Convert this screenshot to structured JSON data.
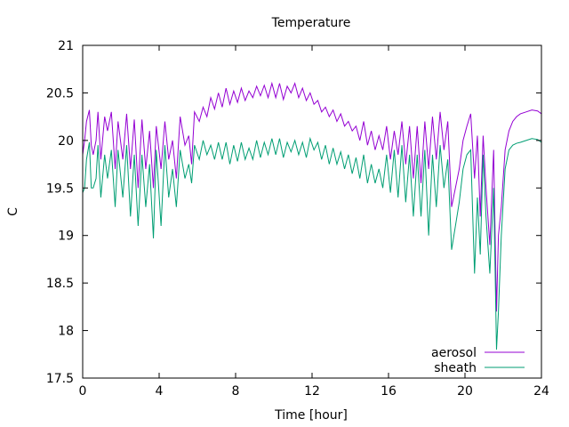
{
  "chart_data": {
    "type": "line",
    "title": "Temperature",
    "xlabel": "Time [hour]",
    "ylabel": "C",
    "xlim": [
      0,
      24
    ],
    "ylim": [
      17.5,
      21
    ],
    "x_ticks": [
      0,
      4,
      8,
      12,
      16,
      20,
      24
    ],
    "x_tick_labels": [
      "0",
      "4",
      "8",
      "12",
      "16",
      "20",
      "24"
    ],
    "y_ticks": [
      17.5,
      18,
      18.5,
      19,
      19.5,
      20,
      20.5,
      21
    ],
    "y_tick_labels": [
      "17.5",
      "18",
      "18.5",
      "19",
      "19.5",
      "20",
      "20.5",
      "21"
    ],
    "grid": false,
    "legend_position": "bottom-right",
    "series": [
      {
        "name": "aerosol",
        "color": "#9400d3",
        "x": [
          0.0,
          0.1,
          0.2,
          0.35,
          0.45,
          0.55,
          0.7,
          0.8,
          0.95,
          1.15,
          1.3,
          1.5,
          1.7,
          1.85,
          2.1,
          2.3,
          2.5,
          2.7,
          2.9,
          3.1,
          3.3,
          3.5,
          3.7,
          3.85,
          4.1,
          4.3,
          4.5,
          4.7,
          4.9,
          5.1,
          5.35,
          5.55,
          5.7,
          5.85,
          6.1,
          6.3,
          6.5,
          6.7,
          6.9,
          7.1,
          7.3,
          7.5,
          7.7,
          7.9,
          8.1,
          8.3,
          8.5,
          8.7,
          8.9,
          9.1,
          9.3,
          9.5,
          9.7,
          9.9,
          10.1,
          10.3,
          10.5,
          10.7,
          10.9,
          11.1,
          11.3,
          11.5,
          11.7,
          11.9,
          12.1,
          12.3,
          12.5,
          12.7,
          12.9,
          13.1,
          13.3,
          13.5,
          13.7,
          13.9,
          14.1,
          14.3,
          14.5,
          14.7,
          14.9,
          15.1,
          15.3,
          15.5,
          15.7,
          15.9,
          16.1,
          16.3,
          16.5,
          16.7,
          16.9,
          17.1,
          17.3,
          17.5,
          17.7,
          17.9,
          18.1,
          18.3,
          18.5,
          18.7,
          18.9,
          19.1,
          19.3,
          19.5,
          19.7,
          19.9,
          20.1,
          20.3,
          20.5,
          20.65,
          20.8,
          20.95,
          21.1,
          21.3,
          21.5,
          21.65,
          21.75,
          21.9,
          22.1,
          22.3,
          22.5,
          22.7,
          22.9,
          23.2,
          23.5,
          23.8,
          24.0
        ],
        "values": [
          19.85,
          20.0,
          20.2,
          20.32,
          19.95,
          19.85,
          20.0,
          20.3,
          19.8,
          20.25,
          20.1,
          20.3,
          19.7,
          20.2,
          19.8,
          20.28,
          19.7,
          20.22,
          19.5,
          20.22,
          19.7,
          20.1,
          19.5,
          20.15,
          19.7,
          20.2,
          19.8,
          20.0,
          19.6,
          20.25,
          19.95,
          20.05,
          19.75,
          20.3,
          20.2,
          20.35,
          20.25,
          20.45,
          20.33,
          20.5,
          20.35,
          20.55,
          20.38,
          20.52,
          20.4,
          20.55,
          20.42,
          20.52,
          20.45,
          20.57,
          20.47,
          20.58,
          20.45,
          20.6,
          20.45,
          20.6,
          20.43,
          20.57,
          20.5,
          20.6,
          20.45,
          20.55,
          20.42,
          20.5,
          20.38,
          20.42,
          20.3,
          20.35,
          20.25,
          20.32,
          20.2,
          20.28,
          20.15,
          20.2,
          20.1,
          20.15,
          20.0,
          20.2,
          19.95,
          20.1,
          19.9,
          20.05,
          19.9,
          20.15,
          19.8,
          20.1,
          19.85,
          20.2,
          19.75,
          20.15,
          19.6,
          20.15,
          19.55,
          20.2,
          19.7,
          20.25,
          19.8,
          20.3,
          19.9,
          20.2,
          19.3,
          19.5,
          19.7,
          20.0,
          20.15,
          20.28,
          19.6,
          20.05,
          19.2,
          20.05,
          19.5,
          18.9,
          19.9,
          18.2,
          19.0,
          19.3,
          19.9,
          20.1,
          20.2,
          20.25,
          20.28,
          20.3,
          20.32,
          20.31,
          20.28
        ]
      },
      {
        "name": "sheath",
        "color": "#009e73",
        "x": [
          0.0,
          0.1,
          0.2,
          0.35,
          0.45,
          0.55,
          0.7,
          0.8,
          0.95,
          1.15,
          1.3,
          1.5,
          1.7,
          1.85,
          2.1,
          2.3,
          2.5,
          2.7,
          2.9,
          3.1,
          3.3,
          3.5,
          3.7,
          3.85,
          4.1,
          4.3,
          4.5,
          4.7,
          4.9,
          5.1,
          5.35,
          5.55,
          5.7,
          5.85,
          6.1,
          6.3,
          6.5,
          6.7,
          6.9,
          7.1,
          7.3,
          7.5,
          7.7,
          7.9,
          8.1,
          8.3,
          8.5,
          8.7,
          8.9,
          9.1,
          9.3,
          9.5,
          9.7,
          9.9,
          10.1,
          10.3,
          10.5,
          10.7,
          10.9,
          11.1,
          11.3,
          11.5,
          11.7,
          11.9,
          12.1,
          12.3,
          12.5,
          12.7,
          12.9,
          13.1,
          13.3,
          13.5,
          13.7,
          13.9,
          14.1,
          14.3,
          14.5,
          14.7,
          14.9,
          15.1,
          15.3,
          15.5,
          15.7,
          15.9,
          16.1,
          16.3,
          16.5,
          16.7,
          16.9,
          17.1,
          17.3,
          17.5,
          17.7,
          17.9,
          18.1,
          18.3,
          18.5,
          18.7,
          18.9,
          19.1,
          19.3,
          19.5,
          19.7,
          19.9,
          20.1,
          20.3,
          20.5,
          20.65,
          20.8,
          20.95,
          21.1,
          21.3,
          21.5,
          21.65,
          21.75,
          21.9,
          22.1,
          22.3,
          22.5,
          22.7,
          22.9,
          23.2,
          23.5,
          23.8,
          24.0
        ],
        "values": [
          19.45,
          19.5,
          19.8,
          19.98,
          19.5,
          19.5,
          19.6,
          19.95,
          19.4,
          19.85,
          19.6,
          19.9,
          19.3,
          19.9,
          19.4,
          19.95,
          19.2,
          19.85,
          19.1,
          19.85,
          19.3,
          19.75,
          18.97,
          19.9,
          19.1,
          19.95,
          19.4,
          19.7,
          19.3,
          19.9,
          19.6,
          19.75,
          19.55,
          19.95,
          19.8,
          20.0,
          19.85,
          19.95,
          19.8,
          19.98,
          19.8,
          19.98,
          19.75,
          19.95,
          19.78,
          19.98,
          19.8,
          19.92,
          19.8,
          20.0,
          19.82,
          19.98,
          19.85,
          20.02,
          19.85,
          20.02,
          19.82,
          19.98,
          19.88,
          20.0,
          19.85,
          19.98,
          19.82,
          20.02,
          19.9,
          19.98,
          19.8,
          19.95,
          19.75,
          19.92,
          19.75,
          19.88,
          19.7,
          19.85,
          19.65,
          19.82,
          19.6,
          19.85,
          19.55,
          19.75,
          19.55,
          19.7,
          19.5,
          19.85,
          19.45,
          19.9,
          19.4,
          19.95,
          19.35,
          19.85,
          19.2,
          19.85,
          19.2,
          19.9,
          19.0,
          19.85,
          19.3,
          19.95,
          19.5,
          19.8,
          18.85,
          19.1,
          19.35,
          19.7,
          19.85,
          19.9,
          18.6,
          19.4,
          18.8,
          19.85,
          19.2,
          18.6,
          19.5,
          17.8,
          18.2,
          19.0,
          19.7,
          19.9,
          19.95,
          19.97,
          19.98,
          20.0,
          20.02,
          20.01,
          19.98
        ]
      }
    ]
  }
}
